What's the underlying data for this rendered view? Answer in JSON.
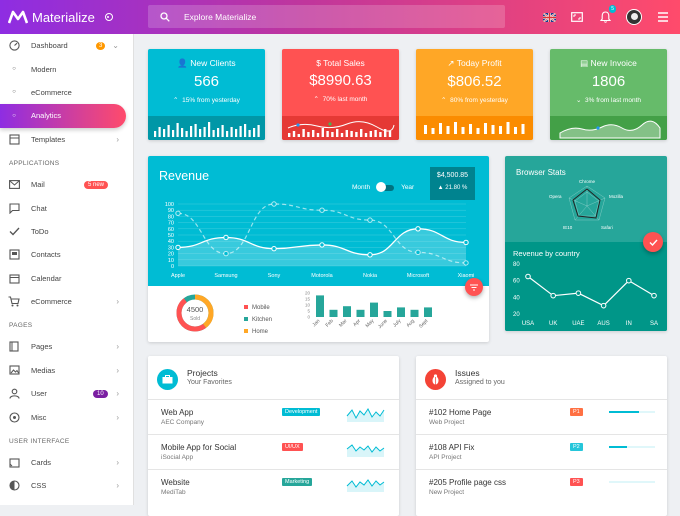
{
  "app": {
    "name": "Materialize",
    "search_placeholder": "Explore Materialize",
    "notification_count": "5"
  },
  "sidebar": {
    "items": [
      {
        "label": "Dashboard",
        "icon": "dashboard-icon",
        "badge": "3"
      },
      {
        "label": "Modern",
        "icon": "circle-icon"
      },
      {
        "label": "eCommerce",
        "icon": "circle-icon"
      },
      {
        "label": "Analytics",
        "icon": "circle-icon"
      },
      {
        "label": "Templates",
        "icon": "template-icon"
      }
    ],
    "sections": [
      "APPLICATIONS",
      "PAGES",
      "USER INTERFACE"
    ],
    "apps": [
      {
        "label": "Mail",
        "icon": "mail-icon",
        "badge": "5 new"
      },
      {
        "label": "Chat",
        "icon": "chat-icon"
      },
      {
        "label": "ToDo",
        "icon": "check-icon"
      },
      {
        "label": "Contacts",
        "icon": "contacts-icon"
      },
      {
        "label": "Calendar",
        "icon": "calendar-icon"
      },
      {
        "label": "eCommerce",
        "icon": "cart-icon"
      }
    ],
    "pages": [
      {
        "label": "Pages",
        "icon": "page-icon"
      },
      {
        "label": "Medias",
        "icon": "media-icon"
      },
      {
        "label": "User",
        "icon": "user-icon",
        "badge": "10"
      },
      {
        "label": "Misc",
        "icon": "misc-icon"
      }
    ],
    "ui": [
      {
        "label": "Cards",
        "icon": "cards-icon"
      },
      {
        "label": "CSS",
        "icon": "css-icon"
      }
    ]
  },
  "stats": [
    {
      "title": "New Clients",
      "value": "566",
      "sub": "15% from yesterday",
      "color": "#00bcd4",
      "foot": "#0097a7",
      "icon": "person-add-icon",
      "trend": "up"
    },
    {
      "title": "Total Sales",
      "value": "$8990.63",
      "sub": "70% last month",
      "color": "#ff5252",
      "foot": "#e53935",
      "icon": "dollar-icon",
      "trend": "up"
    },
    {
      "title": "Today Profit",
      "value": "$806.52",
      "sub": "80% from yesterday",
      "color": "#ffa726",
      "foot": "#fb8c00",
      "icon": "trending-up-icon",
      "trend": "up"
    },
    {
      "title": "New Invoice",
      "value": "1806",
      "sub": "3% from last month",
      "color": "#66bb6a",
      "foot": "#43a047",
      "icon": "invoice-icon",
      "trend": "down"
    }
  ],
  "revenue": {
    "title": "Revenue",
    "toggle": {
      "left": "Month",
      "right": "Year"
    },
    "total": "$4,500.85",
    "change": "21.80 %",
    "chart_data": {
      "type": "line",
      "categories": [
        "Apple",
        "Samsung",
        "Sony",
        "Motorola",
        "Nokia",
        "Microsoft",
        "Xiaomi"
      ],
      "yticks": [
        0,
        10,
        20,
        30,
        40,
        50,
        60,
        70,
        80,
        90,
        100
      ],
      "ylim": [
        0,
        100
      ],
      "series": [
        {
          "values": [
            30,
            46,
            28,
            34,
            18,
            60,
            38
          ]
        },
        {
          "values": [
            85,
            20,
            100,
            90,
            74,
            22,
            5
          ]
        }
      ]
    }
  },
  "donut": {
    "value": "4500",
    "label": "Sold",
    "legend": [
      "Mobile",
      "Kitchen",
      "Home"
    ],
    "legend_colors": [
      "#ff5252",
      "#26a69a",
      "#ffa726"
    ]
  },
  "bars": {
    "chart_data": {
      "type": "bar",
      "categories": [
        "Jan",
        "Feb",
        "Mar",
        "Apr",
        "May",
        "June",
        "July",
        "Aug",
        "Sept"
      ],
      "values": [
        18,
        6,
        9,
        6,
        12,
        5,
        8,
        6,
        8
      ],
      "yticks": [
        0,
        5,
        10,
        15,
        20
      ],
      "ylim": [
        0,
        20
      ]
    }
  },
  "browser": {
    "title": "Browser Stats",
    "labels": [
      "Chrome",
      "Mozilla",
      "Safari",
      "IE10",
      "Opera"
    ]
  },
  "country": {
    "title": "Revenue by country",
    "chart_data": {
      "type": "line",
      "categories": [
        "USA",
        "UK",
        "UAE",
        "AUS",
        "IN",
        "SA"
      ],
      "yticks": [
        20,
        40,
        60,
        80
      ],
      "ylim": [
        20,
        80
      ],
      "values": [
        65,
        42,
        45,
        30,
        60,
        42
      ]
    }
  },
  "projects": {
    "title": "Projects",
    "sub": "Your Favorites",
    "rows": [
      {
        "title": "Web App",
        "sub": "AEC Company",
        "tag": "Development",
        "tag_color": "#00bcd4"
      },
      {
        "title": "Mobile App for Social",
        "sub": "iSocial App",
        "tag": "UI/UX",
        "tag_color": "#ff5252"
      },
      {
        "title": "Website",
        "sub": "MediTab",
        "tag": "Marketing",
        "tag_color": "#26a69a"
      }
    ]
  },
  "issues": {
    "title": "Issues",
    "sub": "Assigned to you",
    "rows": [
      {
        "title": "#102 Home Page",
        "sub": "Web Project",
        "tag": "P1",
        "tag_color": "#ff7043",
        "progress": 0.65
      },
      {
        "title": "#108 API Fix",
        "sub": "API Project",
        "tag": "P2",
        "tag_color": "#26c6da",
        "progress": 0.4
      },
      {
        "title": "#205 Profile page css",
        "sub": "New Project",
        "tag": "P3",
        "tag_color": "#ff5252",
        "progress": 0.0
      }
    ]
  }
}
